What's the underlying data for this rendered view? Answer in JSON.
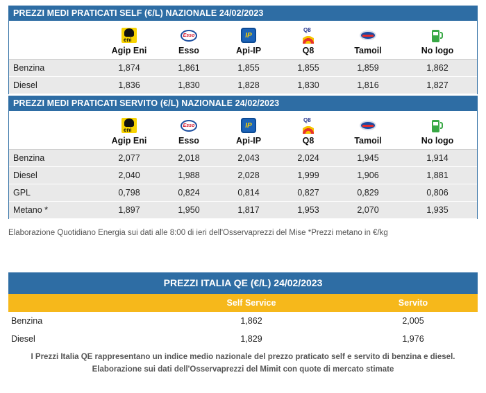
{
  "self_table": {
    "title": "PREZZI MEDI PRATICATI SELF (€/L) NAZIONALE 24/02/2023",
    "brands": [
      {
        "name": "Agip Eni",
        "icon": "eni-logo-icon"
      },
      {
        "name": "Esso",
        "icon": "esso-logo-icon"
      },
      {
        "name": "Api-IP",
        "icon": "api-ip-logo-icon"
      },
      {
        "name": "Q8",
        "icon": "q8-logo-icon"
      },
      {
        "name": "Tamoil",
        "icon": "tamoil-logo-icon"
      },
      {
        "name": "No logo",
        "icon": "fuel-pump-icon"
      }
    ],
    "rows": [
      {
        "label": "Benzina",
        "values": [
          "1,874",
          "1,861",
          "1,855",
          "1,855",
          "1,859",
          "1,862"
        ]
      },
      {
        "label": "Diesel",
        "values": [
          "1,836",
          "1,830",
          "1,828",
          "1,830",
          "1,816",
          "1,827"
        ]
      }
    ]
  },
  "servito_table": {
    "title": "PREZZI MEDI PRATICATI SERVITO (€/L) NAZIONALE 24/02/2023",
    "brands": [
      {
        "name": "Agip Eni",
        "icon": "eni-logo-icon"
      },
      {
        "name": "Esso",
        "icon": "esso-logo-icon"
      },
      {
        "name": "Api-IP",
        "icon": "api-ip-logo-icon"
      },
      {
        "name": "Q8",
        "icon": "q8-logo-icon"
      },
      {
        "name": "Tamoil",
        "icon": "tamoil-logo-icon"
      },
      {
        "name": "No logo",
        "icon": "fuel-pump-icon"
      }
    ],
    "rows": [
      {
        "label": "Benzina",
        "values": [
          "2,077",
          "2,018",
          "2,043",
          "2,024",
          "1,945",
          "1,914"
        ]
      },
      {
        "label": "Diesel",
        "values": [
          "2,040",
          "1,988",
          "2,028",
          "1,999",
          "1,906",
          "1,881"
        ]
      },
      {
        "label": "GPL",
        "values": [
          "0,798",
          "0,824",
          "0,814",
          "0,827",
          "0,829",
          "0,806"
        ]
      },
      {
        "label": "Metano *",
        "values": [
          "1,897",
          "1,950",
          "1,817",
          "1,953",
          "2,070",
          "1,935"
        ]
      }
    ]
  },
  "note": "Elaborazione Quotidiano Energia sui dati alle 8:00 di ieri dell'Osservaprezzi del Mise *Prezzi metano in €/kg",
  "qe_table": {
    "title": "PREZZI ITALIA QE (€/L) 24/02/2023",
    "columns": [
      "Self Service",
      "Servito"
    ],
    "rows": [
      {
        "label": "Benzina",
        "values": [
          "1,862",
          "2,005"
        ]
      },
      {
        "label": "Diesel",
        "values": [
          "1,829",
          "1,976"
        ]
      }
    ],
    "footnote_1": "I Prezzi Italia QE rappresentano un indice medio nazionale del prezzo praticato self e servito di benzina e diesel.",
    "footnote_2": "Elaborazione sui dati dell'Osservaprezzi del Mimit con quote di mercato stimate"
  },
  "colors": {
    "header_blue": "#2e6da4",
    "accent_yellow": "#f6b81b",
    "row_gray": "#e9e9e9"
  }
}
